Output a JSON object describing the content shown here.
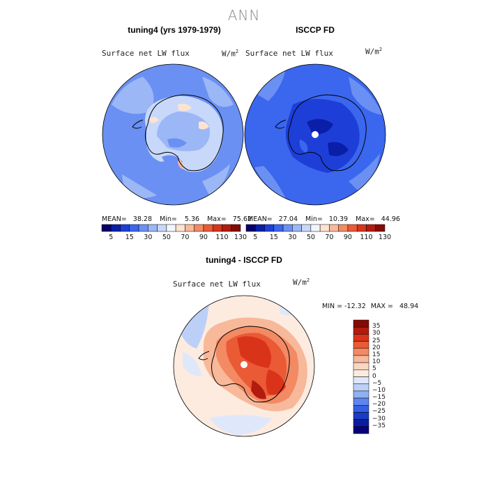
{
  "figure": {
    "title": "ANN"
  },
  "chart_data": [
    {
      "type": "heatmap",
      "projection": "south-polar-stereographic",
      "title": "tuning4 (yrs 1979-1979)",
      "variable": "Surface net LW flux",
      "units_base": "W/m",
      "units_exp": "2",
      "stats": {
        "mean_label": "MEAN=",
        "mean": "38.28",
        "min_label": "Min=",
        "min": "5.36",
        "max_label": "Max=",
        "max": "75.62"
      },
      "colorbar_levels": [
        "5",
        "15",
        "30",
        "50",
        "70",
        "90",
        "110",
        "130"
      ],
      "colorbar_colors": [
        "#08006b",
        "#0a1fa8",
        "#1d3fd8",
        "#3b66ee",
        "#6a90f3",
        "#9bb7f6",
        "#c7d8fa",
        "#f2f5fc",
        "#fde3d0",
        "#f8b89a",
        "#f28a63",
        "#ea5a35",
        "#d9341a",
        "#b31b0e",
        "#850a05"
      ]
    },
    {
      "type": "heatmap",
      "projection": "south-polar-stereographic",
      "title": "ISCCP FD",
      "variable": "Surface net LW flux",
      "units_base": "W/m",
      "units_exp": "2",
      "stats": {
        "mean_label": "MEAN=",
        "mean": "27.04",
        "min_label": "Min=",
        "min": "10.39",
        "max_label": "Max=",
        "max": "44.96"
      },
      "colorbar_levels": [
        "5",
        "15",
        "30",
        "50",
        "70",
        "90",
        "110",
        "130"
      ],
      "colorbar_colors": [
        "#08006b",
        "#0a1fa8",
        "#1d3fd8",
        "#3b66ee",
        "#6a90f3",
        "#9bb7f6",
        "#c7d8fa",
        "#f2f5fc",
        "#fde3d0",
        "#f8b89a",
        "#f28a63",
        "#ea5a35",
        "#d9341a",
        "#b31b0e",
        "#850a05"
      ]
    },
    {
      "type": "heatmap",
      "projection": "south-polar-stereographic",
      "title": "tuning4 - ISCCP FD",
      "variable": "Surface net LW flux",
      "units_base": "W/m",
      "units_exp": "2",
      "stats": {
        "min_label": "MIN =",
        "min": "-12.32",
        "max_label": "MAX =",
        "max": "48.94"
      },
      "colorbar_levels": [
        "35",
        "30",
        "25",
        "20",
        "15",
        "10",
        "5",
        "0",
        "−5",
        "−10",
        "−15",
        "−20",
        "−25",
        "−30",
        "−35"
      ],
      "colorbar_colors": [
        "#850a05",
        "#b31b0e",
        "#d9341a",
        "#ea5a35",
        "#f28a63",
        "#f8b89a",
        "#fbd5c0",
        "#fdebe0",
        "#dfe8fb",
        "#bcd0f7",
        "#8fb1f3",
        "#5f86ee",
        "#3460e4",
        "#1a3bc8",
        "#0a1e9b",
        "#06007a"
      ]
    }
  ]
}
